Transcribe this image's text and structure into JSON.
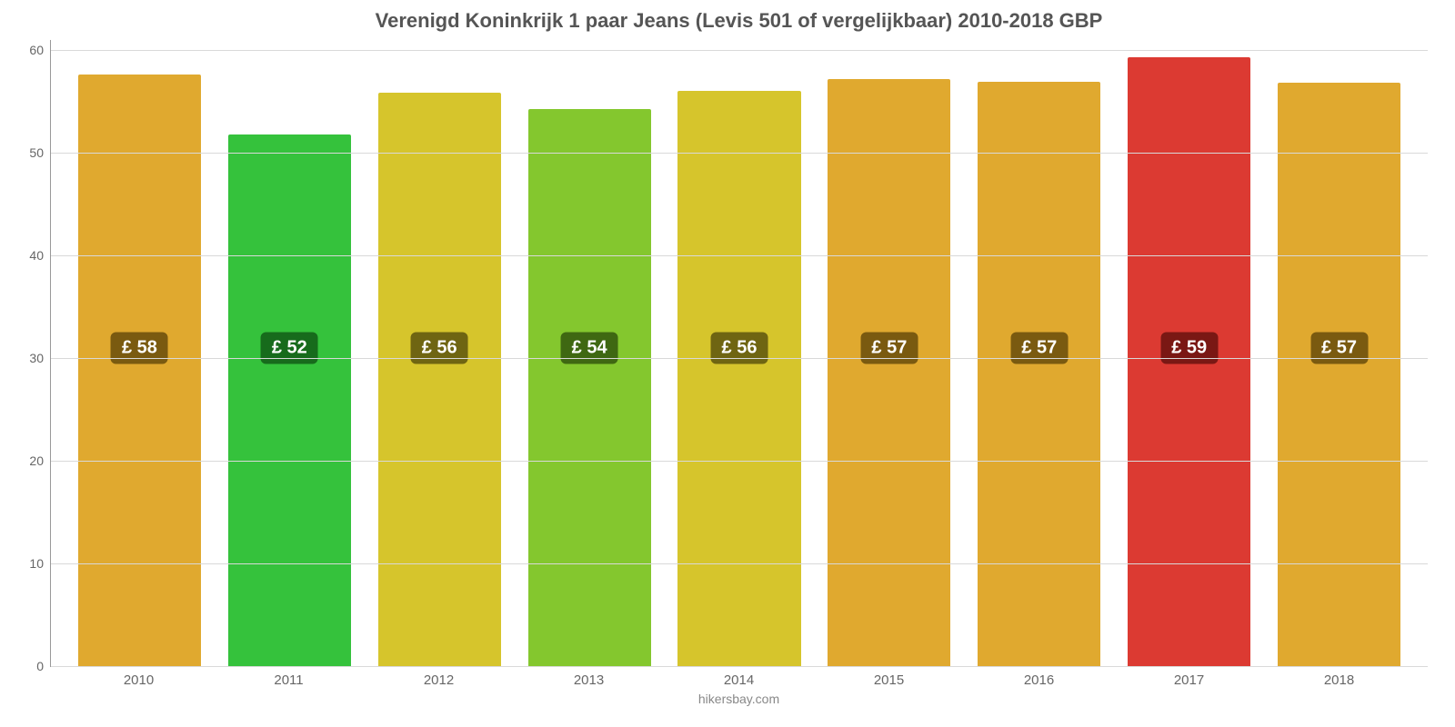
{
  "chart": {
    "type": "bar",
    "title": "Verenigd Koninkrijk 1 paar Jeans (Levis 501 of vergelijkbaar) 2010-2018 GBP",
    "title_fontsize": 22,
    "title_color": "#555555",
    "source": "hikersbay.com",
    "source_color": "#888888",
    "background_color": "#ffffff",
    "grid_color": "#d9d9d9",
    "axis_color": "#999999",
    "tick_label_color": "#666666",
    "ylim": [
      0,
      61
    ],
    "yticks": [
      0,
      10,
      20,
      30,
      40,
      50,
      60
    ],
    "data_label_fontsize": 20,
    "data_label_color": "#ffffff",
    "data_label_y_center": 31,
    "x_label_fontsize": 15,
    "categories": [
      "2010",
      "2011",
      "2012",
      "2013",
      "2014",
      "2015",
      "2016",
      "2017",
      "2018"
    ],
    "bars": [
      {
        "value": 57.6,
        "label": "£ 58",
        "color": "#e0a92f",
        "label_bg": "#7a5a10"
      },
      {
        "value": 51.8,
        "label": "£ 52",
        "color": "#35c23c",
        "label_bg": "#176b1c"
      },
      {
        "value": 55.9,
        "label": "£ 56",
        "color": "#d6c52c",
        "label_bg": "#6f6512"
      },
      {
        "value": 54.3,
        "label": "£ 54",
        "color": "#84c72e",
        "label_bg": "#3f6812"
      },
      {
        "value": 56.0,
        "label": "£ 56",
        "color": "#d6c52c",
        "label_bg": "#6f6512"
      },
      {
        "value": 57.2,
        "label": "£ 57",
        "color": "#e0a92f",
        "label_bg": "#7a5a10"
      },
      {
        "value": 56.9,
        "label": "£ 57",
        "color": "#e0a92f",
        "label_bg": "#7a5a10"
      },
      {
        "value": 59.3,
        "label": "£ 59",
        "color": "#dc3a32",
        "label_bg": "#7a1814"
      },
      {
        "value": 56.8,
        "label": "£ 57",
        "color": "#e0a92f",
        "label_bg": "#7a5a10"
      }
    ]
  }
}
